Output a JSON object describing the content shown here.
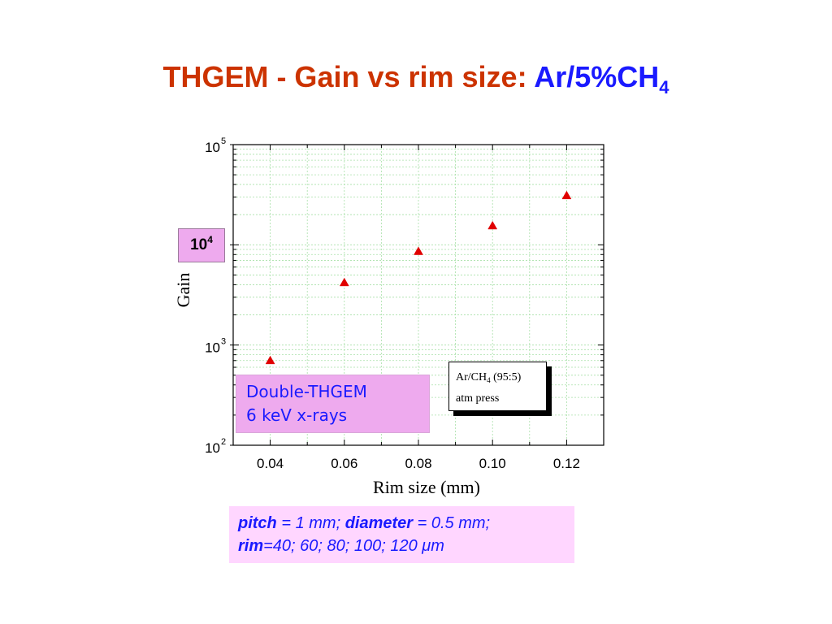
{
  "title": {
    "main": "THGEM - Gain vs rim size:",
    "gas": "Ar/5%CH",
    "gas_sub": "4"
  },
  "colors": {
    "title_main": "#cc3300",
    "title_gas": "#1a1aff",
    "marker": "#e00000",
    "grid": "#a8e0a8",
    "info_box_bg": "#eeaaee",
    "params_box_bg": "#ffd6ff",
    "info_text": "#1a1aff"
  },
  "chart_data": {
    "type": "scatter",
    "xlabel": "Rim size (mm)",
    "ylabel": "Gain",
    "xlim": [
      0.03,
      0.13
    ],
    "ylim": [
      100,
      100000
    ],
    "y_scale": "log",
    "grid": true,
    "marker": "triangle",
    "x_ticks": [
      {
        "value": 0.04,
        "label": "0.04"
      },
      {
        "value": 0.06,
        "label": "0.06"
      },
      {
        "value": 0.08,
        "label": "0.08"
      },
      {
        "value": 0.1,
        "label": "0.10"
      },
      {
        "value": 0.12,
        "label": "0.12"
      }
    ],
    "y_ticks": [
      {
        "value": 100,
        "base": "10",
        "exp": "2"
      },
      {
        "value": 1000,
        "base": "10",
        "exp": "3"
      },
      {
        "value": 100000,
        "base": "10",
        "exp": "5"
      }
    ],
    "series": [
      {
        "x": [
          0.04,
          0.06,
          0.08,
          0.1,
          0.12
        ],
        "y": [
          700,
          4200,
          8600,
          15500,
          31000
        ]
      }
    ]
  },
  "gain_label_box": {
    "base": "10",
    "exp": "4"
  },
  "info_box": {
    "line1": "Double-THGEM",
    "line2": "6 keV x-rays"
  },
  "gas_box": {
    "line1_pre": "Ar/CH",
    "line1_sub": "4",
    "line1_post": " (95:5)",
    "line2": "atm press"
  },
  "params": {
    "pitch_label": "pitch",
    "pitch_value": " = 1 mm; ",
    "diameter_label": "diameter",
    "diameter_value": " = 0.5 mm;",
    "rim_label": "rim",
    "rim_value": "=40; 60; 80; 100; 120 ",
    "rim_unit": "μm"
  }
}
